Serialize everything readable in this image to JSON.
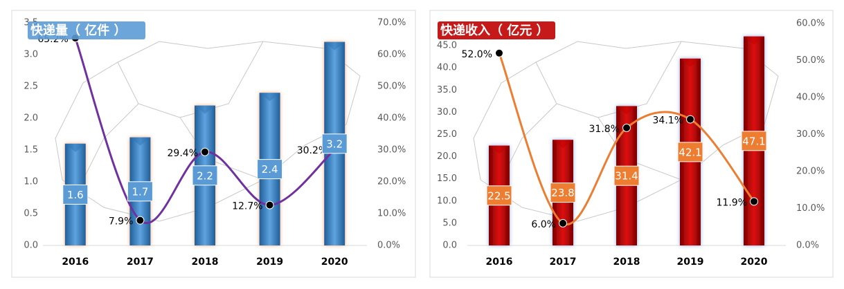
{
  "chart_data": [
    {
      "type": "bar",
      "title": "快递量（ 亿件 ）",
      "categories": [
        "2016",
        "2017",
        "2018",
        "2019",
        "2020"
      ],
      "series": [
        {
          "type": "bar",
          "color": "#2e75b6",
          "values": [
            1.6,
            1.7,
            2.2,
            2.4,
            3.2
          ]
        },
        {
          "type": "line",
          "axis": "y2",
          "color": "#7030a0",
          "values": [
            65.2,
            7.9,
            29.4,
            12.7,
            30.2
          ],
          "value_labels": [
            "65.2%",
            "7.9%",
            "29.4%",
            "12.7%",
            "30.2%"
          ]
        }
      ],
      "ylim": [
        0,
        3.5
      ],
      "yticks": [
        {
          "value": 0,
          "label": "0.0"
        },
        0.5,
        {
          "value": 1,
          "label": "1.0"
        },
        1.5,
        {
          "value": 2,
          "label": "2.0"
        },
        2.5,
        {
          "value": 3,
          "label": "3.0"
        },
        3.5
      ],
      "y2lim": [
        0,
        70
      ],
      "y2ticks": [
        {
          "value": 0,
          "label": "0.0%"
        },
        {
          "value": 10,
          "label": "10.0%"
        },
        {
          "value": 20,
          "label": "20.0%"
        },
        {
          "value": 30,
          "label": "30.0%"
        },
        {
          "value": 40,
          "label": "40.0%"
        },
        {
          "value": 50,
          "label": "50.0%"
        },
        {
          "value": 60,
          "label": "60.0%"
        },
        {
          "value": 70,
          "label": "70.0%"
        }
      ]
    },
    {
      "type": "bar",
      "title": "快递收入（ 亿元 ）",
      "categories": [
        "2016",
        "2017",
        "2018",
        "2019",
        "2020"
      ],
      "series": [
        {
          "type": "bar",
          "color": "#c00000",
          "values": [
            22.5,
            23.8,
            31.4,
            42.1,
            47.1
          ]
        },
        {
          "type": "line",
          "axis": "y2",
          "color": "#ed7d31",
          "values": [
            52.0,
            6.0,
            31.8,
            34.1,
            11.9
          ],
          "value_labels": [
            "52.0%",
            "6.0%",
            "31.8%",
            "34.1%",
            "11.9%"
          ]
        }
      ],
      "ylim": [
        0,
        50
      ],
      "yticks": [
        {
          "value": 0,
          "label": "0.0"
        },
        {
          "value": 5,
          "label": "5.0"
        },
        {
          "value": 10,
          "label": "10.0"
        },
        {
          "value": 15,
          "label": "15.0"
        },
        {
          "value": 20,
          "label": "20.0"
        },
        {
          "value": 25,
          "label": "25.0"
        },
        {
          "value": 30,
          "label": "30.0"
        },
        {
          "value": 35,
          "label": "35.0"
        },
        {
          "value": 40,
          "label": "40.0"
        },
        {
          "value": 45,
          "label": "45.0"
        }
      ],
      "y2lim": [
        0,
        60
      ],
      "y2ticks": [
        {
          "value": 0,
          "label": "0.0%"
        },
        {
          "value": 10,
          "label": "10.0%"
        },
        {
          "value": 20,
          "label": "20.0%"
        },
        {
          "value": 30,
          "label": "30.0%"
        },
        {
          "value": 40,
          "label": "40.0%"
        },
        {
          "value": 50,
          "label": "50.0%"
        },
        {
          "value": 60,
          "label": "60.0%"
        }
      ]
    }
  ]
}
